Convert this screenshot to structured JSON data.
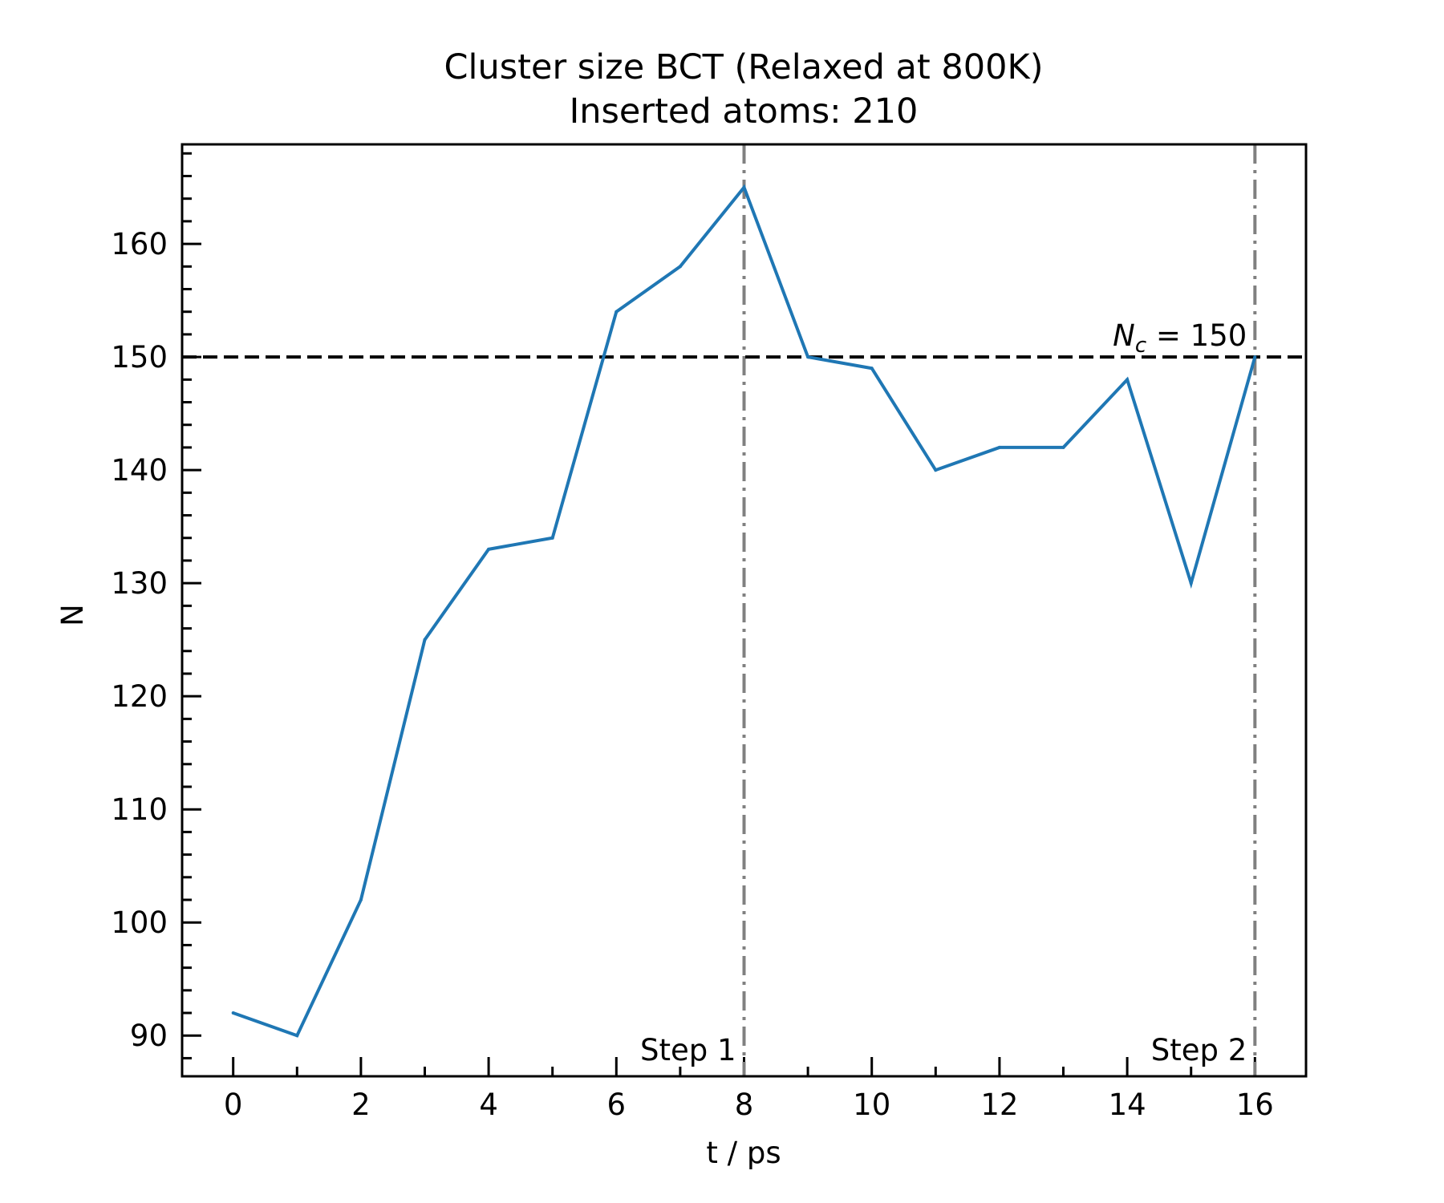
{
  "chart_data": {
    "type": "line",
    "title": "Cluster size BCT (Relaxed at 800K)",
    "subtitle": "Inserted atoms: 210",
    "xlabel": "t / ps",
    "ylabel": "N",
    "xlim": [
      -0.8,
      16.8
    ],
    "ylim": [
      86.4,
      168.8
    ],
    "xticks": [
      0,
      2,
      4,
      6,
      8,
      10,
      12,
      14,
      16
    ],
    "yticks": [
      90,
      100,
      110,
      120,
      130,
      140,
      150,
      160
    ],
    "x_minor_step": 1,
    "y_minor_step": 2,
    "grid": false,
    "series": [
      {
        "color": "#1f77b4",
        "x": [
          0,
          1,
          2,
          3,
          4,
          5,
          6,
          7,
          8,
          9,
          10,
          11,
          12,
          13,
          14,
          15,
          16
        ],
        "values": [
          92,
          90,
          102,
          125,
          133,
          134,
          154,
          158,
          165,
          150,
          149,
          140,
          142,
          142,
          148,
          130,
          150
        ]
      }
    ],
    "hline": {
      "y": 150,
      "color": "#000000",
      "style": "dashed",
      "label_prefix": "N",
      "label_sub": "c",
      "label_rest": " = 150"
    },
    "vlines": [
      {
        "x": 8,
        "color": "#808080",
        "style": "dashdot",
        "label": "Step 1"
      },
      {
        "x": 16,
        "color": "#808080",
        "style": "dashdot",
        "label": "Step 2"
      }
    ]
  }
}
